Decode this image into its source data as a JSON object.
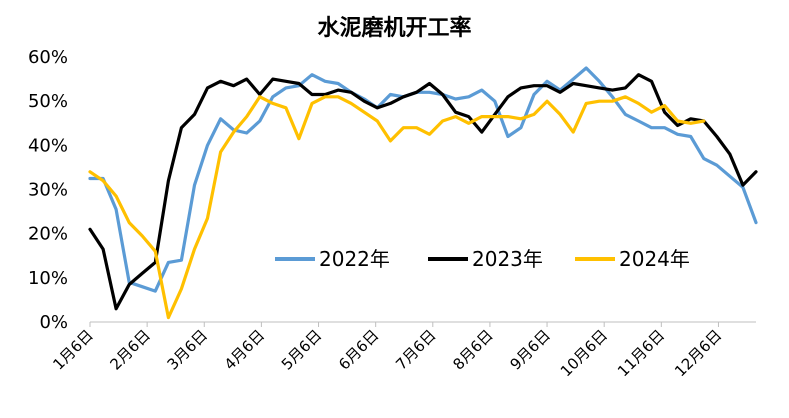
{
  "chart_data": {
    "type": "line",
    "title": "水泥磨机开工率",
    "xlabel": "",
    "ylabel": "",
    "ylim": [
      0,
      60
    ],
    "yticks": [
      "0%",
      "10%",
      "20%",
      "30%",
      "40%",
      "50%",
      "60%"
    ],
    "x_tick_labels": [
      "1月6日",
      "2月6日",
      "3月6日",
      "4月6日",
      "5月6日",
      "6月6日",
      "7月6日",
      "8月6日",
      "9月6日",
      "10月6日",
      "11月6日",
      "12月6日"
    ],
    "grid": false,
    "legend_position": "center",
    "series": [
      {
        "name": "2022年",
        "color": "#5B9BD5",
        "values": [
          32.5,
          32.5,
          25.5,
          9,
          8,
          7,
          13.5,
          14,
          31,
          40,
          46,
          43.5,
          42.8,
          45.5,
          51,
          53,
          53.5,
          56,
          54.5,
          54,
          52,
          50.5,
          48.5,
          51.5,
          51,
          52,
          52,
          51.5,
          50.5,
          51,
          52.5,
          50,
          42,
          44,
          51.5,
          54.5,
          52.5,
          55,
          57.5,
          54.5,
          51,
          47,
          45.5,
          44,
          44,
          42.5,
          42,
          37,
          35.5,
          33,
          30.5,
          22.5
        ]
      },
      {
        "name": "2023年",
        "color": "#000000",
        "values": [
          21,
          16.5,
          3,
          8.5,
          11,
          13.5,
          32,
          44,
          47,
          53,
          54.5,
          53.5,
          55,
          51.5,
          55,
          54.5,
          54,
          51.5,
          51.5,
          52.5,
          52,
          50,
          48.5,
          49.5,
          51,
          52,
          54,
          51.5,
          47.5,
          46.5,
          43,
          47,
          51,
          53,
          53.5,
          53.5,
          52,
          54,
          53.5,
          53,
          52.5,
          53,
          56,
          54.5,
          47.5,
          44.5,
          46,
          45.5,
          42,
          38,
          31,
          34
        ]
      },
      {
        "name": "2024年",
        "color": "#FFC000",
        "values": [
          34,
          32,
          28.5,
          22.5,
          19.5,
          16,
          1,
          7.5,
          16.5,
          23.5,
          38.5,
          43,
          46.5,
          51,
          49.5,
          48.5,
          41.5,
          49.5,
          51,
          51,
          49.5,
          47.5,
          45.5,
          41,
          44,
          44,
          42.5,
          45.5,
          46.5,
          45,
          46.5,
          46.5,
          46.5,
          46,
          47,
          50,
          47,
          43,
          49.5,
          50,
          50,
          51,
          49.5,
          47.5,
          49,
          45.5,
          45,
          45.5
        ]
      }
    ]
  }
}
